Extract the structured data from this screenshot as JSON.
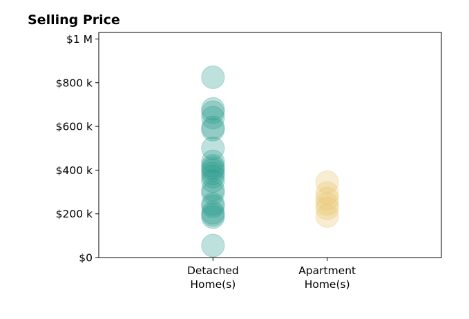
{
  "chart_data": {
    "type": "scatter",
    "title": "Selling Price",
    "xlabel": "",
    "ylabel": "",
    "categories": [
      "Detached\nHome(s)",
      "Apartment\nHome(s)"
    ],
    "y_ticks": [
      {
        "value": 0,
        "label": "$0"
      },
      {
        "value": 200000,
        "label": "$200 k"
      },
      {
        "value": 400000,
        "label": "$400 k"
      },
      {
        "value": 600000,
        "label": "$600 k"
      },
      {
        "value": 800000,
        "label": "$800 k"
      },
      {
        "value": 1000000,
        "label": "$1 M"
      }
    ],
    "ylim": [
      0,
      1030000
    ],
    "xlim": [
      -1,
      2
    ],
    "grid": false,
    "legend": "none",
    "colors": {
      "detached": "#2a9d8f",
      "apartment": "#e9c46a"
    },
    "series": [
      {
        "category_index": 0,
        "color": "#2a9d8f",
        "values": [
          825000,
          680000,
          665000,
          640000,
          595000,
          585000,
          500000,
          440000,
          420000,
          410000,
          400000,
          385000,
          370000,
          350000,
          310000,
          295000,
          245000,
          235000,
          205000,
          195000,
          185000,
          55000
        ]
      },
      {
        "category_index": 1,
        "color": "#e9c46a",
        "values": [
          345000,
          295000,
          270000,
          245000,
          225000,
          190000
        ]
      }
    ]
  }
}
